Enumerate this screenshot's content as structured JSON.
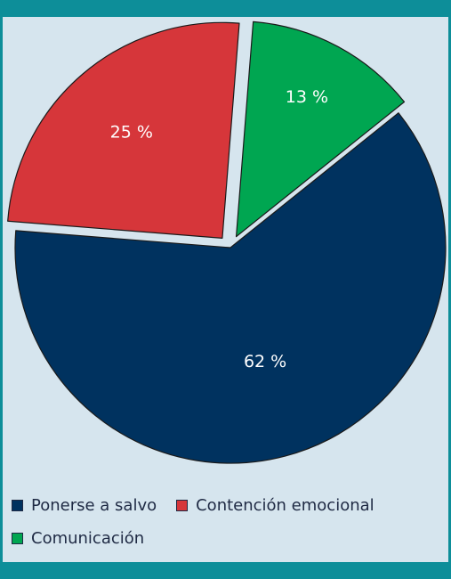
{
  "chart_data": {
    "type": "pie",
    "title": "",
    "slices": [
      {
        "label": "Ponerse a salvo",
        "value": 62,
        "value_label": "62 %",
        "color": "#00325f"
      },
      {
        "label": "Contención emocional",
        "value": 25,
        "value_label": "25 %",
        "color": "#d6363a"
      },
      {
        "label": "Comunicación",
        "value": 13,
        "value_label": "13 %",
        "color": "#00a651"
      }
    ],
    "legend_position": "bottom-left",
    "frame_color": "#0d8e99",
    "background_color": "#d6e5ee"
  },
  "legend": {
    "items": [
      {
        "label": "Ponerse a salvo",
        "color": "#00325f"
      },
      {
        "label": "Contención emocional",
        "color": "#d6363a"
      },
      {
        "label": "Comunicación",
        "color": "#00a651"
      }
    ]
  }
}
